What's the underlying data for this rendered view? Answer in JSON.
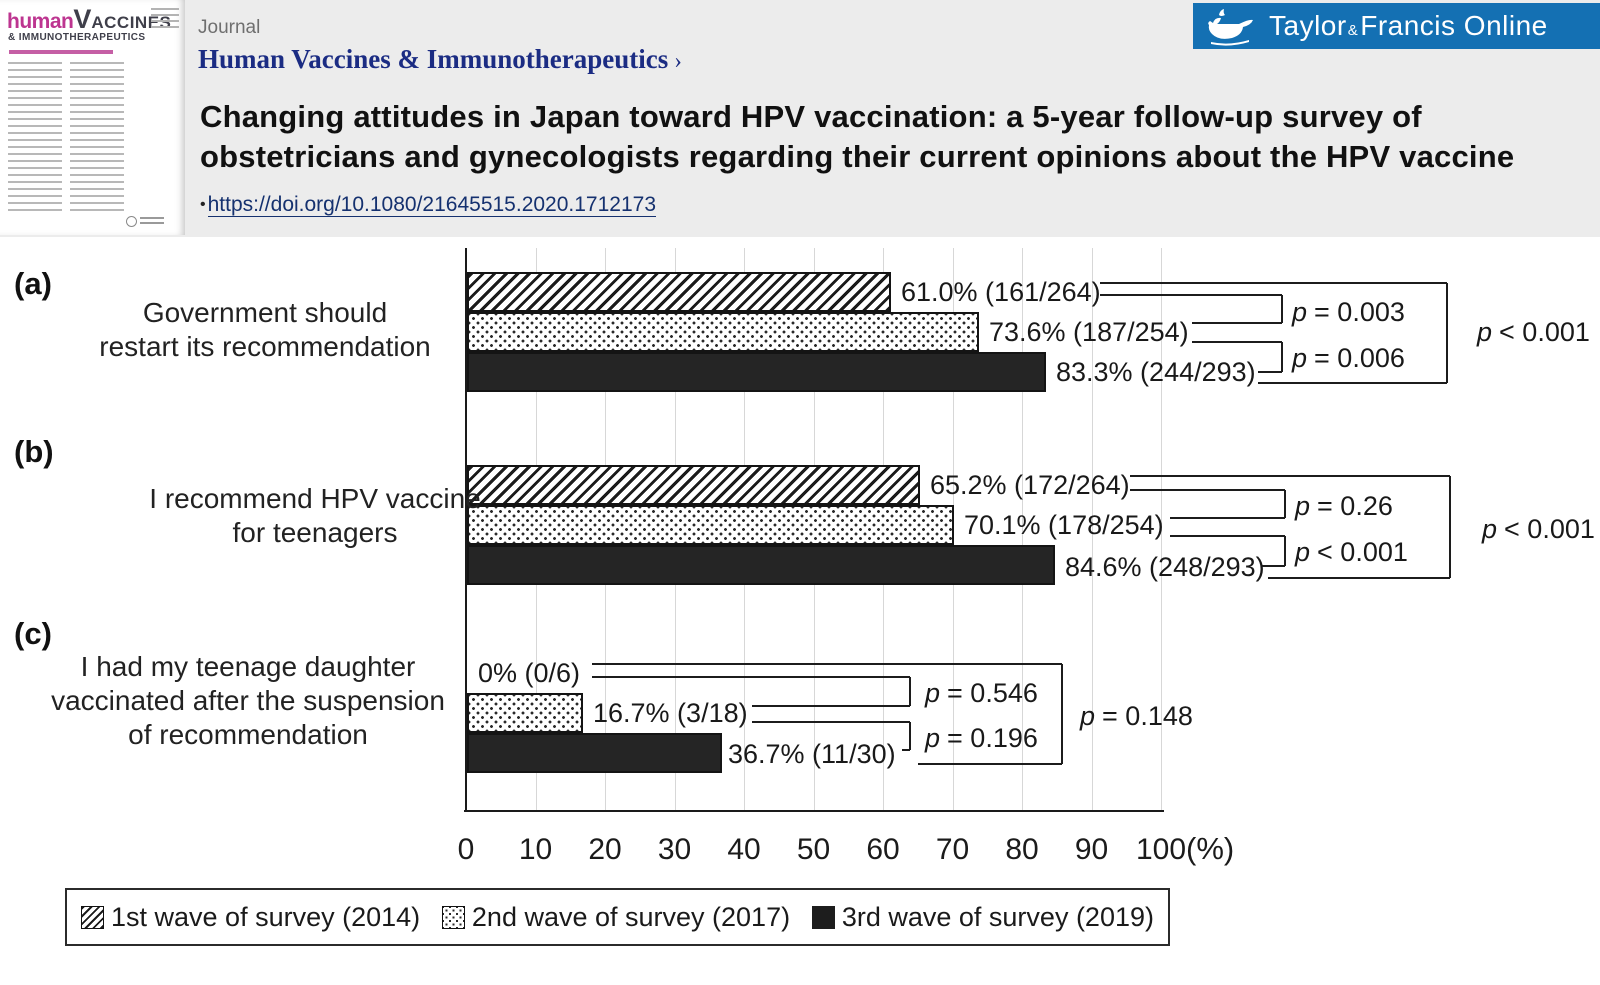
{
  "header": {
    "journal_label": "Journal",
    "journal_name": "Human Vaccines & Immunotherapeutics",
    "journal_chevron": "›",
    "title_line1": "Changing attitudes in Japan toward HPV vaccination: a 5-year follow-up survey of",
    "title_line2": "obstetricians and gynecologists regarding their current opinions about the HPV vaccine",
    "doi_bullet": "•",
    "doi_link": "https://doi.org/10.1080/21645515.2020.1712173",
    "banner": {
      "word1": "Taylor",
      "amp": "&",
      "word2": "Francis Online",
      "bg_color": "#1470b3"
    },
    "cover": {
      "brand_part1": "human",
      "brand_part2": "V",
      "brand_part3": "ACCINES",
      "brand_line2": "& IMMUNOTHERAPEUTICS"
    }
  },
  "chart_data": {
    "type": "bar",
    "orientation": "horizontal",
    "group_letters": [
      "(a)",
      "(b)",
      "(c)"
    ],
    "categories": [
      "Government should restart its recommendation",
      "I recommend HPV vaccine for teenagers",
      "I had my teenage daughter vaccinated after the suspension of recommendation"
    ],
    "category_lines": [
      [
        "Government should",
        "restart its recommendation"
      ],
      [
        "I recommend HPV vaccine",
        "for teenagers"
      ],
      [
        "I had my teenage daughter",
        "vaccinated after the suspension",
        "of recommendation"
      ]
    ],
    "series": [
      {
        "name": "1st wave of survey (2014)",
        "pattern": "hatch",
        "values": [
          61.0,
          65.2,
          0
        ],
        "labels": [
          "61.0% (161/264)",
          "65.2% (172/264)",
          "0% (0/6)"
        ]
      },
      {
        "name": "2nd wave of survey (2017)",
        "pattern": "dots",
        "values": [
          73.6,
          70.1,
          16.7
        ],
        "labels": [
          "73.6% (187/254)",
          "70.1% (178/254)",
          "16.7% (3/18)"
        ]
      },
      {
        "name": "3rd wave of survey (2019)",
        "pattern": "solid",
        "values": [
          83.3,
          84.6,
          36.7
        ],
        "labels": [
          "83.3% (244/293)",
          "84.6% (248/293)",
          "36.7% (11/30)"
        ]
      }
    ],
    "comparisons": [
      {
        "pairs": [
          {
            "sym": "p",
            "val": "= 0.003"
          },
          {
            "sym": "p",
            "val": "= 0.006"
          }
        ],
        "overall": {
          "sym": "p",
          "val": "< 0.001"
        }
      },
      {
        "pairs": [
          {
            "sym": "p",
            "val": "= 0.26"
          },
          {
            "sym": "p",
            "val": "< 0.001"
          }
        ],
        "overall": {
          "sym": "p",
          "val": "< 0.001"
        }
      },
      {
        "pairs": [
          {
            "sym": "p",
            "val": "= 0.546"
          },
          {
            "sym": "p",
            "val": "= 0.196"
          }
        ],
        "overall": {
          "sym": "p",
          "val": "= 0.148"
        }
      }
    ],
    "x_ticks": [
      "0",
      "10",
      "20",
      "30",
      "40",
      "50",
      "60",
      "70",
      "80",
      "90",
      "100"
    ],
    "x_unit": "(%)",
    "xlim": [
      0,
      100
    ],
    "grid": true,
    "legend_position": "bottom"
  }
}
